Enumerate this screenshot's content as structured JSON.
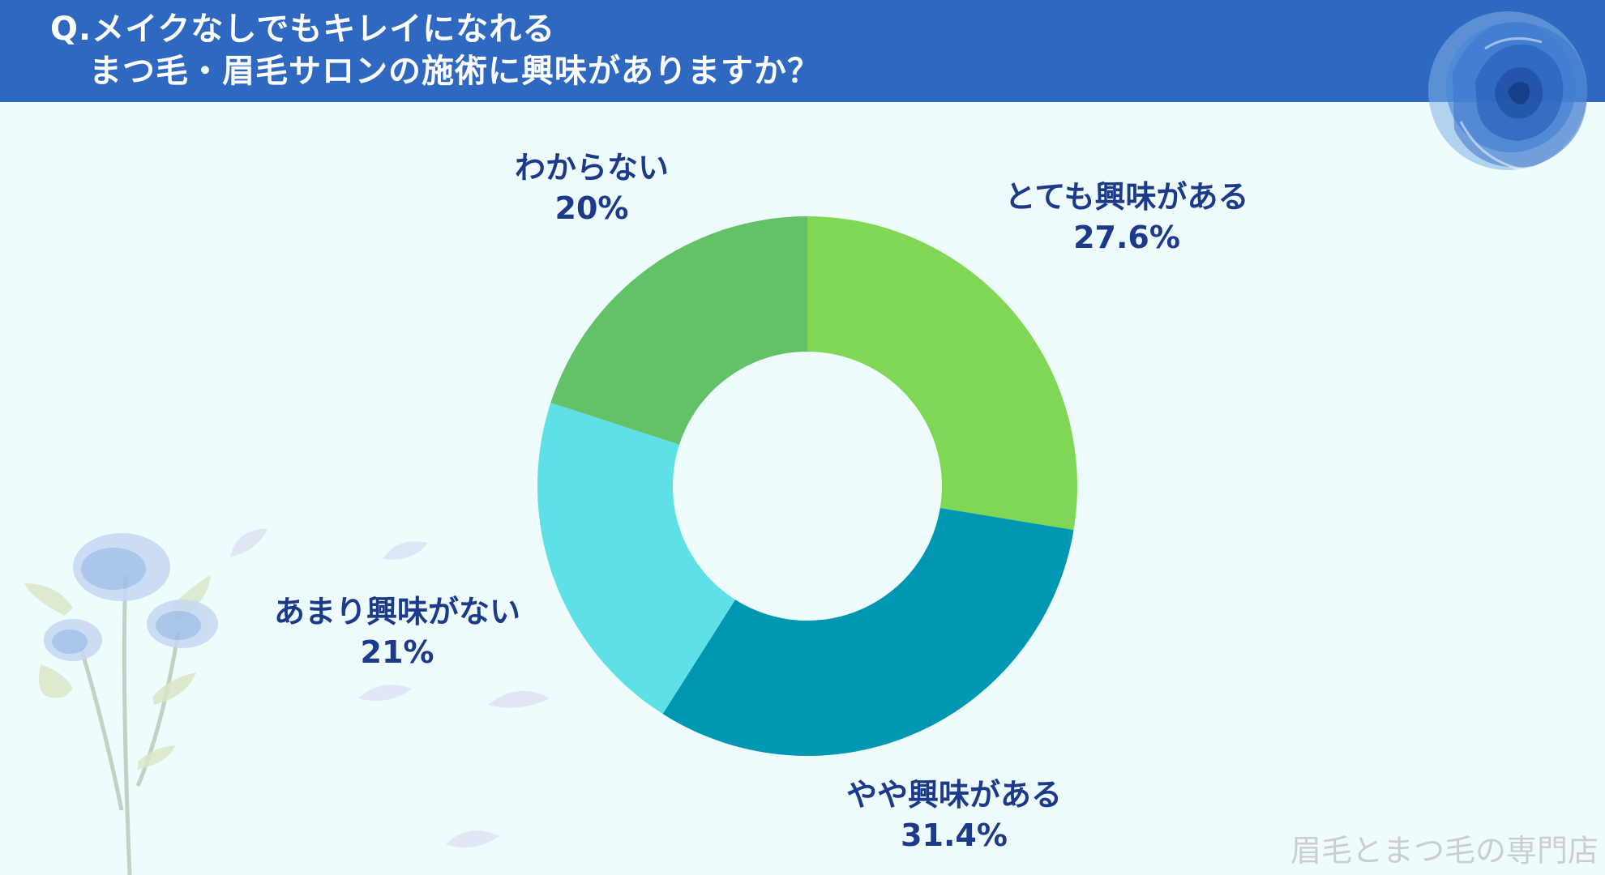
{
  "header": {
    "title_line1": "Q.メイクなしでもキレイになれる",
    "title_line2": "まつ毛・眉毛サロンの施術に興味がありますか？",
    "bg_color": "#2f68c0"
  },
  "chart_data": {
    "type": "pie",
    "donut": true,
    "title": "Q.メイクなしでもキレイになれる まつ毛・眉毛サロンの施術に興味がありますか？",
    "categories": [
      "とても興味がある",
      "やや興味がある",
      "あまり興味がない",
      "わからない"
    ],
    "values": [
      27.6,
      31.4,
      21,
      20
    ],
    "value_labels": [
      "27.6%",
      "31.4%",
      "21%",
      "20%"
    ],
    "colors": [
      "#7fd755",
      "#0097b2",
      "#5ee1e6",
      "#63c167"
    ],
    "legend": "none"
  },
  "footer": {
    "text": "眉毛とまつ毛の専門店"
  }
}
